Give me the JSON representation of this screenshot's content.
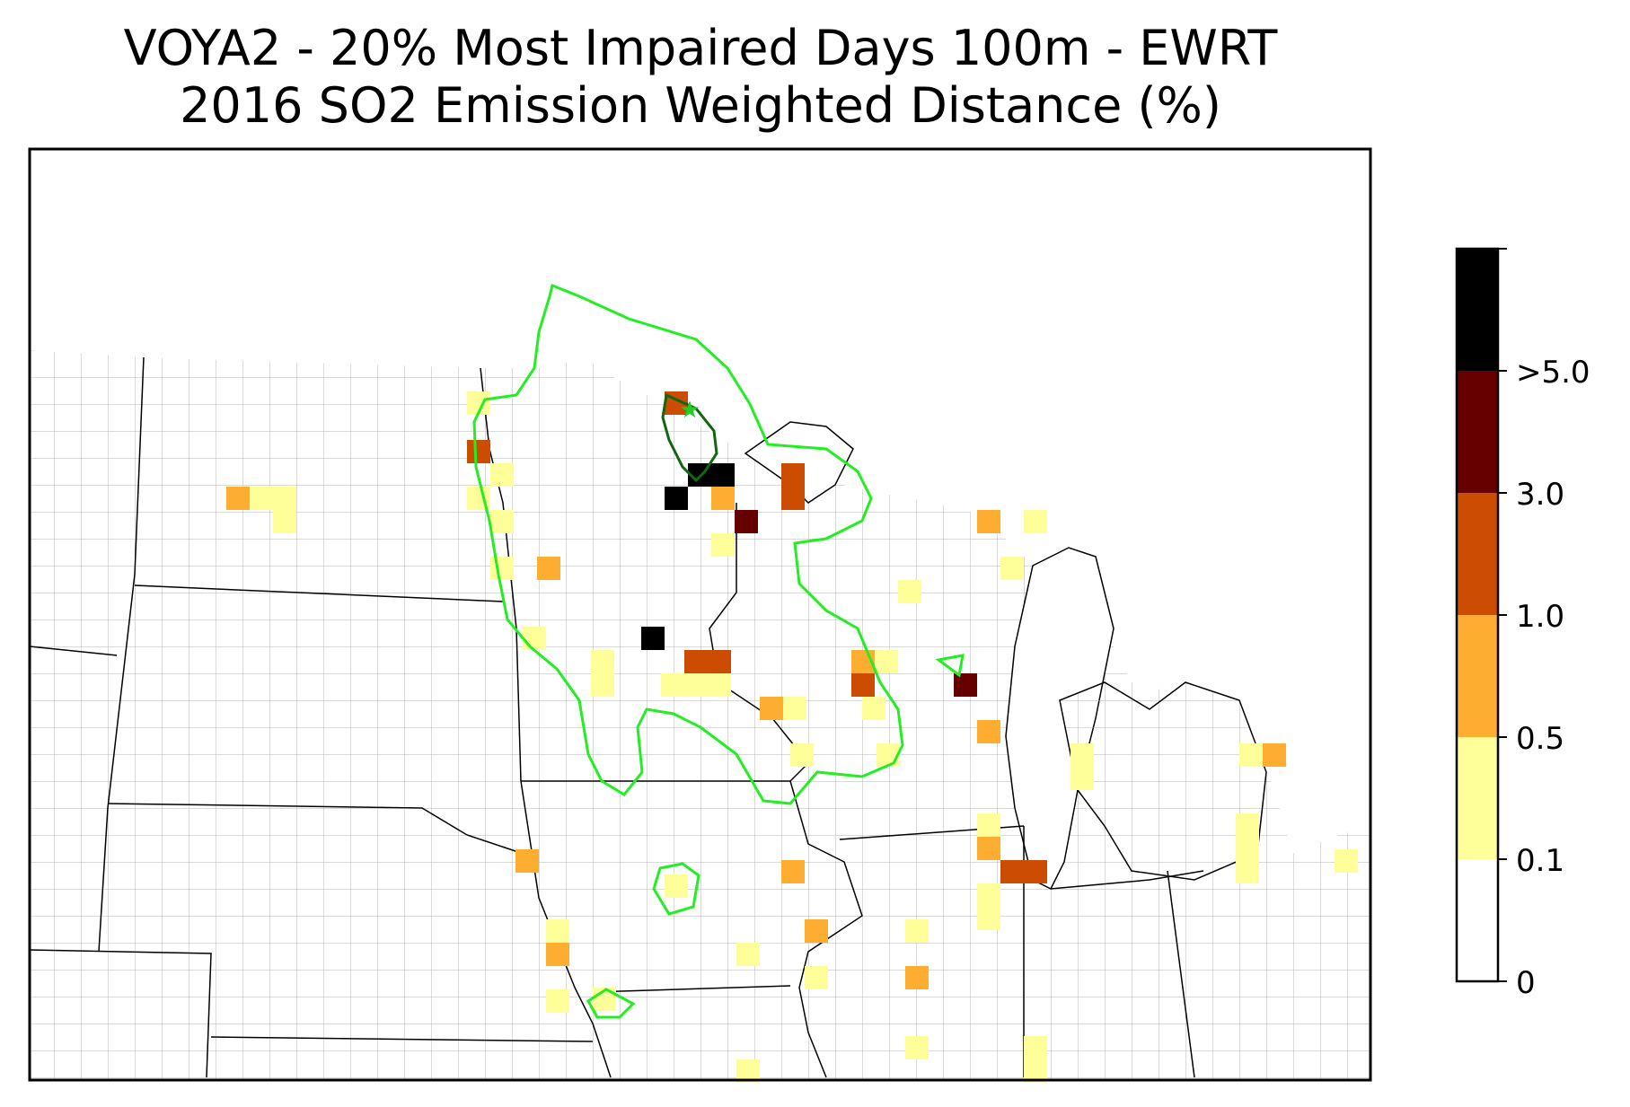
{
  "title": {
    "line1": "VOYA2 - 20% Most Impaired Days 100m - EWRT",
    "line2": "2016 SO2 Emission Weighted Distance (%)"
  },
  "legend": {
    "bins": [
      {
        "from": "0",
        "to": "0.1",
        "color": "#ffffff"
      },
      {
        "from": "0.1",
        "to": "0.5",
        "color": "#ffff99"
      },
      {
        "from": "0.5",
        "to": "1.0",
        "color": "#fdae30"
      },
      {
        "from": "1.0",
        "to": "3.0",
        "color": "#cc4c02"
      },
      {
        "from": "3.0",
        "to": "5.0",
        "color": "#660000"
      },
      {
        "from": "5.0",
        "to": "max",
        "color": "#000000"
      }
    ],
    "tick_labels": [
      "0",
      "0.1",
      "0.5",
      "1.0",
      "3.0",
      ">5.0"
    ]
  },
  "map": {
    "receptor_marker": "star-icon",
    "contour_colors": {
      "outer": "#22ee22",
      "inner": "#116611"
    },
    "state_line_color": "#000000",
    "county_line_color": "#aaaaaa"
  }
}
